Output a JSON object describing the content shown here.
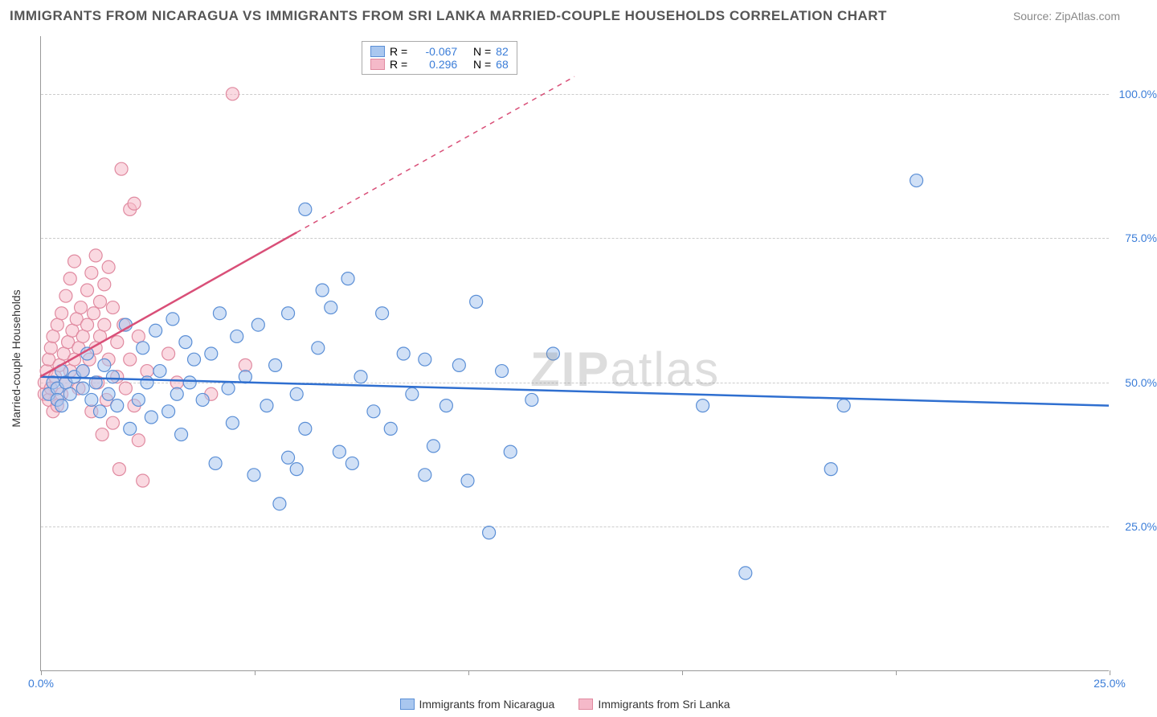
{
  "title": "IMMIGRANTS FROM NICARAGUA VS IMMIGRANTS FROM SRI LANKA MARRIED-COUPLE HOUSEHOLDS CORRELATION CHART",
  "source": "Source: ZipAtlas.com",
  "ylabel": "Married-couple Households",
  "watermark_a": "ZIP",
  "watermark_b": "atlas",
  "chart": {
    "type": "scatter",
    "xlim": [
      0,
      25
    ],
    "ylim": [
      0,
      110
    ],
    "background_color": "#ffffff",
    "grid_color": "#cccccc",
    "axis_color": "#999999",
    "title_fontsize": 17,
    "label_fontsize": 14,
    "marker_radius": 8,
    "marker_opacity": 0.55,
    "x_ticks": [
      0,
      5,
      10,
      15,
      20,
      25
    ],
    "x_tick_labels": [
      "0.0%",
      "",
      "",
      "",
      "",
      "25.0%"
    ],
    "x_tick_label_color": "#3b7dd8",
    "y_ticks": [
      25,
      50,
      75,
      100
    ],
    "y_tick_labels": [
      "25.0%",
      "50.0%",
      "75.0%",
      "100.0%"
    ],
    "y_tick_label_color": "#3b7dd8",
    "y_grid_dashed": true
  },
  "legend_stats": {
    "r_label": "R =",
    "n_label": "N =",
    "series_a": {
      "r": "-0.067",
      "n": "82"
    },
    "series_b": {
      "r": "0.296",
      "n": "68"
    },
    "value_color": "#3b7dd8",
    "box_border": "#aaaaaa"
  },
  "series_a": {
    "name": "Immigrants from Nicaragua",
    "marker_fill": "#a9c7ef",
    "marker_stroke": "#5b8fd6",
    "line_color": "#2f6fd0",
    "line_width": 2.5,
    "trend": {
      "x1": 0,
      "y1": 51,
      "x2": 25,
      "y2": 46
    },
    "points": [
      [
        0.2,
        48
      ],
      [
        0.3,
        50
      ],
      [
        0.4,
        49
      ],
      [
        0.4,
        47
      ],
      [
        0.5,
        52
      ],
      [
        0.5,
        46
      ],
      [
        0.6,
        50
      ],
      [
        0.7,
        48
      ],
      [
        0.8,
        51
      ],
      [
        1.0,
        49
      ],
      [
        1.0,
        52
      ],
      [
        1.1,
        55
      ],
      [
        1.2,
        47
      ],
      [
        1.3,
        50
      ],
      [
        1.4,
        45
      ],
      [
        1.5,
        53
      ],
      [
        1.6,
        48
      ],
      [
        1.7,
        51
      ],
      [
        1.8,
        46
      ],
      [
        2.0,
        60
      ],
      [
        2.1,
        42
      ],
      [
        2.3,
        47
      ],
      [
        2.4,
        56
      ],
      [
        2.5,
        50
      ],
      [
        2.6,
        44
      ],
      [
        2.7,
        59
      ],
      [
        2.8,
        52
      ],
      [
        3.0,
        45
      ],
      [
        3.1,
        61
      ],
      [
        3.2,
        48
      ],
      [
        3.3,
        41
      ],
      [
        3.4,
        57
      ],
      [
        3.5,
        50
      ],
      [
        3.6,
        54
      ],
      [
        3.8,
        47
      ],
      [
        4.0,
        55
      ],
      [
        4.1,
        36
      ],
      [
        4.2,
        62
      ],
      [
        4.4,
        49
      ],
      [
        4.5,
        43
      ],
      [
        4.6,
        58
      ],
      [
        4.8,
        51
      ],
      [
        5.0,
        34
      ],
      [
        5.1,
        60
      ],
      [
        5.3,
        46
      ],
      [
        5.5,
        53
      ],
      [
        5.6,
        29
      ],
      [
        5.8,
        62
      ],
      [
        6.0,
        48
      ],
      [
        6.2,
        42
      ],
      [
        6.2,
        80
      ],
      [
        6.5,
        56
      ],
      [
        6.6,
        66
      ],
      [
        6.8,
        63
      ],
      [
        7.0,
        38
      ],
      [
        7.2,
        68
      ],
      [
        7.3,
        36
      ],
      [
        7.5,
        51
      ],
      [
        7.8,
        45
      ],
      [
        8.0,
        62
      ],
      [
        8.2,
        42
      ],
      [
        8.5,
        55
      ],
      [
        8.7,
        48
      ],
      [
        9.0,
        34
      ],
      [
        9.0,
        54
      ],
      [
        9.2,
        39
      ],
      [
        9.5,
        46
      ],
      [
        9.8,
        53
      ],
      [
        10.0,
        33
      ],
      [
        10.5,
        24
      ],
      [
        10.2,
        64
      ],
      [
        10.8,
        52
      ],
      [
        11.0,
        38
      ],
      [
        11.5,
        47
      ],
      [
        12.0,
        55
      ],
      [
        15.5,
        46
      ],
      [
        16.5,
        17
      ],
      [
        18.5,
        35
      ],
      [
        18.8,
        46
      ],
      [
        20.5,
        85
      ],
      [
        6.0,
        35
      ],
      [
        5.8,
        37
      ]
    ]
  },
  "series_b": {
    "name": "Immigrants from Sri Lanka",
    "marker_fill": "#f5b9c9",
    "marker_stroke": "#e08aa0",
    "line_color": "#d94f78",
    "line_width": 2.5,
    "trend_solid": {
      "x1": 0,
      "y1": 51,
      "x2": 6,
      "y2": 76
    },
    "trend_dash": {
      "x1": 6,
      "y1": 76,
      "x2": 12.5,
      "y2": 103
    },
    "points": [
      [
        0.1,
        48
      ],
      [
        0.1,
        50
      ],
      [
        0.15,
        52
      ],
      [
        0.2,
        47
      ],
      [
        0.2,
        54
      ],
      [
        0.25,
        49
      ],
      [
        0.25,
        56
      ],
      [
        0.3,
        45
      ],
      [
        0.3,
        58
      ],
      [
        0.35,
        51
      ],
      [
        0.4,
        60
      ],
      [
        0.4,
        46
      ],
      [
        0.45,
        53
      ],
      [
        0.5,
        62
      ],
      [
        0.5,
        48
      ],
      [
        0.55,
        55
      ],
      [
        0.6,
        50
      ],
      [
        0.6,
        65
      ],
      [
        0.65,
        57
      ],
      [
        0.7,
        52
      ],
      [
        0.7,
        68
      ],
      [
        0.75,
        59
      ],
      [
        0.8,
        54
      ],
      [
        0.8,
        71
      ],
      [
        0.85,
        61
      ],
      [
        0.9,
        56
      ],
      [
        0.9,
        49
      ],
      [
        0.95,
        63
      ],
      [
        1.0,
        58
      ],
      [
        1.0,
        52
      ],
      [
        1.1,
        66
      ],
      [
        1.1,
        60
      ],
      [
        1.15,
        54
      ],
      [
        1.2,
        69
      ],
      [
        1.2,
        45
      ],
      [
        1.25,
        62
      ],
      [
        1.3,
        56
      ],
      [
        1.3,
        72
      ],
      [
        1.35,
        50
      ],
      [
        1.4,
        64
      ],
      [
        1.4,
        58
      ],
      [
        1.45,
        41
      ],
      [
        1.5,
        67
      ],
      [
        1.5,
        60
      ],
      [
        1.55,
        47
      ],
      [
        1.6,
        70
      ],
      [
        1.6,
        54
      ],
      [
        1.7,
        63
      ],
      [
        1.7,
        43
      ],
      [
        1.8,
        57
      ],
      [
        1.8,
        51
      ],
      [
        1.85,
        35
      ],
      [
        1.9,
        87
      ],
      [
        1.95,
        60
      ],
      [
        2.0,
        49
      ],
      [
        2.1,
        80
      ],
      [
        2.1,
        54
      ],
      [
        2.2,
        81
      ],
      [
        2.2,
        46
      ],
      [
        2.3,
        58
      ],
      [
        2.3,
        40
      ],
      [
        2.4,
        33
      ],
      [
        2.5,
        52
      ],
      [
        3.0,
        55
      ],
      [
        3.2,
        50
      ],
      [
        4.5,
        100
      ],
      [
        4.8,
        53
      ],
      [
        4.0,
        48
      ]
    ]
  },
  "bottom_legend": [
    {
      "label": "Immigrants from Nicaragua",
      "fill": "#a9c7ef",
      "stroke": "#5b8fd6"
    },
    {
      "label": "Immigrants from Sri Lanka",
      "fill": "#f5b9c9",
      "stroke": "#e08aa0"
    }
  ]
}
